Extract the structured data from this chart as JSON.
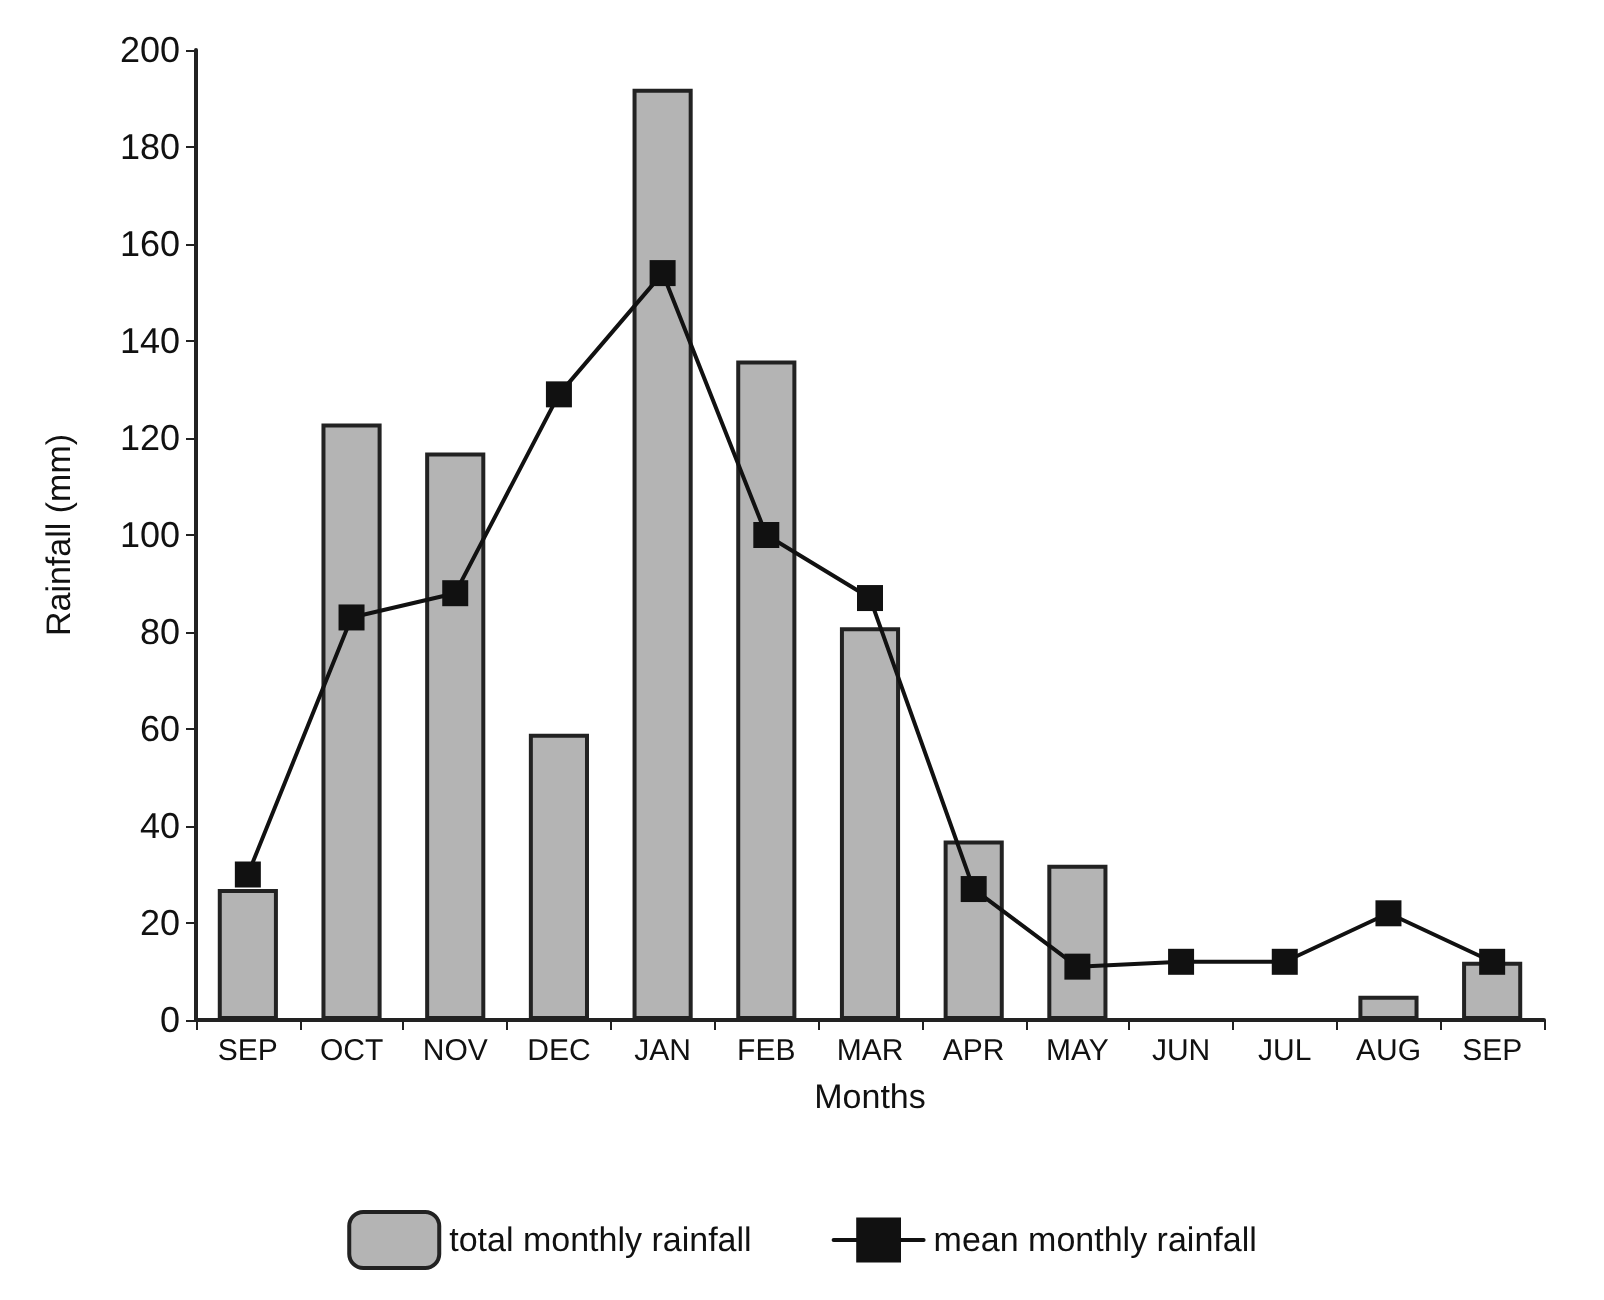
{
  "chart_data": {
    "type": "bar",
    "xlabel": "Months",
    "ylabel": "Rainfall (mm)",
    "categories": [
      "SEP",
      "OCT",
      "NOV",
      "DEC",
      "JAN",
      "FEB",
      "MAR",
      "APR",
      "MAY",
      "JUN",
      "JUL",
      "AUG",
      "SEP"
    ],
    "series": [
      {
        "name": "total monthly rainfall",
        "color": "#b4b4b4",
        "values": [
          27,
          123,
          117,
          59,
          192,
          136,
          81,
          37,
          32,
          null,
          null,
          5,
          12
        ]
      },
      {
        "name": "mean monthly rainfall",
        "type": "line",
        "color": "#111111",
        "marker": "square",
        "values": [
          30,
          83,
          88,
          129,
          154,
          100,
          87,
          27,
          11,
          12,
          12,
          22,
          12
        ]
      }
    ],
    "ylim": [
      0,
      200
    ],
    "yticks": [
      0,
      20,
      40,
      60,
      80,
      100,
      120,
      140,
      160,
      180,
      200
    ],
    "grid": false,
    "legend": "bottom"
  }
}
